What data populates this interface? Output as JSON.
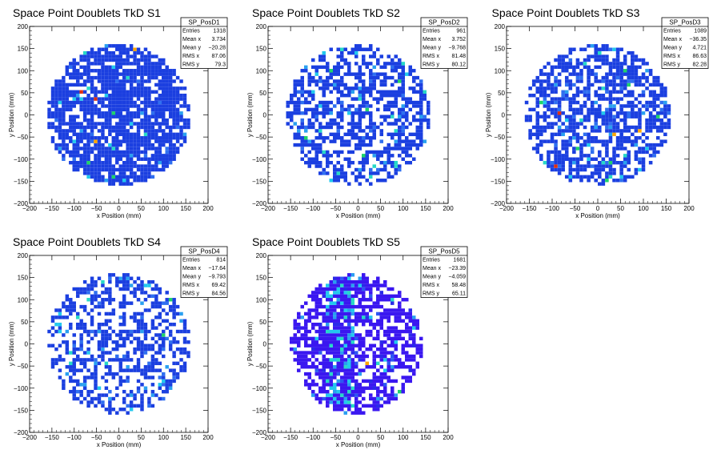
{
  "chart_data": [
    {
      "type": "heatmap",
      "title": "Space Point Doublets TkD S1",
      "xlabel": "x Position (mm)",
      "ylabel": "y Position (mm)",
      "xlim": [
        -200,
        200
      ],
      "ylim": [
        -200,
        200
      ],
      "xticks": [
        "−200",
        "−150",
        "−100",
        "−50",
        "0",
        "50",
        "100",
        "150",
        "200"
      ],
      "yticks": [
        "−200",
        "−150",
        "−100",
        "−50",
        "0",
        "50",
        "100",
        "150",
        "200"
      ],
      "stats": {
        "name": "SP_PosD1",
        "rows": [
          {
            "label": "Entries",
            "value": "1318"
          },
          {
            "label": "Mean x",
            "value": "3.734"
          },
          {
            "label": "Mean y",
            "value": "−20.28"
          },
          {
            "label": "RMS x",
            "value": "87.06"
          },
          {
            "label": "RMS y",
            "value": "79.3"
          }
        ]
      },
      "radius": 160,
      "density": 0.78,
      "palette": [
        "#1b3fe0",
        "#1b3fe0",
        "#1b3fe0",
        "#1b3fe0",
        "#2f6ff0",
        "#2aa0f0",
        "#22c8ee",
        "#27d8c8",
        "#1fd36a",
        "#ffa500",
        "#e03010"
      ],
      "weights": [
        0.55,
        0.22,
        0.13,
        0.05,
        0.02,
        0.01,
        0.01,
        0.005,
        0.003,
        0.002,
        0.001
      ]
    },
    {
      "type": "heatmap",
      "title": "Space Point Doublets TkD S2",
      "xlabel": "x Position (mm)",
      "ylabel": "y Position (mm)",
      "xlim": [
        -200,
        200
      ],
      "ylim": [
        -200,
        200
      ],
      "xticks": [
        "−200",
        "−150",
        "−100",
        "−50",
        "0",
        "50",
        "100",
        "150",
        "200"
      ],
      "yticks": [
        "−200",
        "−150",
        "−100",
        "−50",
        "0",
        "50",
        "100",
        "150",
        "200"
      ],
      "stats": {
        "name": "SP_PosD2",
        "rows": [
          {
            "label": "Entries",
            "value": "961"
          },
          {
            "label": "Mean x",
            "value": "3.752"
          },
          {
            "label": "Mean y",
            "value": "−9.768"
          },
          {
            "label": "RMS x",
            "value": "81.48"
          },
          {
            "label": "RMS y",
            "value": "80.12"
          }
        ]
      },
      "radius": 160,
      "density": 0.55
    },
    {
      "type": "heatmap",
      "title": "Space Point Doublets TkD S3",
      "xlabel": "x Position (mm)",
      "ylabel": "y Position (mm)",
      "xlim": [
        -200,
        200
      ],
      "ylim": [
        -200,
        200
      ],
      "xticks": [
        "−200",
        "−150",
        "−100",
        "−50",
        "0",
        "50",
        "100",
        "150",
        "200"
      ],
      "yticks": [
        "−200",
        "−150",
        "−100",
        "−50",
        "0",
        "50",
        "100",
        "150",
        "200"
      ],
      "stats": {
        "name": "SP_PosD3",
        "rows": [
          {
            "label": "Entries",
            "value": "1089"
          },
          {
            "label": "Mean x",
            "value": "−36.35"
          },
          {
            "label": "Mean y",
            "value": "4.721"
          },
          {
            "label": "RMS x",
            "value": "86.63"
          },
          {
            "label": "RMS y",
            "value": "82.28"
          }
        ]
      },
      "radius": 160,
      "density": 0.62
    },
    {
      "type": "heatmap",
      "title": "Space Point Doublets TkD S4",
      "xlabel": "x Position (mm)",
      "ylabel": "y Position (mm)",
      "xlim": [
        -200,
        200
      ],
      "ylim": [
        -200,
        200
      ],
      "xticks": [
        "−200",
        "−150",
        "−100",
        "−50",
        "0",
        "50",
        "100",
        "150",
        "200"
      ],
      "yticks": [
        "−200",
        "−150",
        "−100",
        "−50",
        "0",
        "50",
        "100",
        "150",
        "200"
      ],
      "stats": {
        "name": "SP_PosD4",
        "rows": [
          {
            "label": "Entries",
            "value": "814"
          },
          {
            "label": "Mean x",
            "value": "−17.64"
          },
          {
            "label": "Mean y",
            "value": "−9.793"
          },
          {
            "label": "RMS x",
            "value": "69.42"
          },
          {
            "label": "RMS y",
            "value": "84.56"
          }
        ]
      },
      "radius": 160,
      "density": 0.48
    },
    {
      "type": "heatmap",
      "title": "Space Point Doublets TkD S5",
      "xlabel": "x Position (mm)",
      "ylabel": "y Position (mm)",
      "xlim": [
        -200,
        200
      ],
      "ylim": [
        -200,
        200
      ],
      "xticks": [
        "−200",
        "−150",
        "−100",
        "−50",
        "0",
        "50",
        "100",
        "150",
        "200"
      ],
      "yticks": [
        "−200",
        "−150",
        "−100",
        "−50",
        "0",
        "50",
        "100",
        "150",
        "200"
      ],
      "stats": {
        "name": "SP_PosD5",
        "rows": [
          {
            "label": "Entries",
            "value": "1681"
          },
          {
            "label": "Mean x",
            "value": "−23.39"
          },
          {
            "label": "Mean y",
            "value": "−4.059"
          },
          {
            "label": "RMS x",
            "value": "58.48"
          },
          {
            "label": "RMS y",
            "value": "65.11"
          }
        ]
      },
      "radius": 160,
      "density": 0.6,
      "palette": [
        "#3a17f0",
        "#3a17f0",
        "#3a17f0",
        "#2a2ae8",
        "#2d57f2",
        "#2a9ef0",
        "#22c8ee",
        "#27d8c8",
        "#1fd36a",
        "#ffa500",
        "#e03010"
      ]
    }
  ]
}
